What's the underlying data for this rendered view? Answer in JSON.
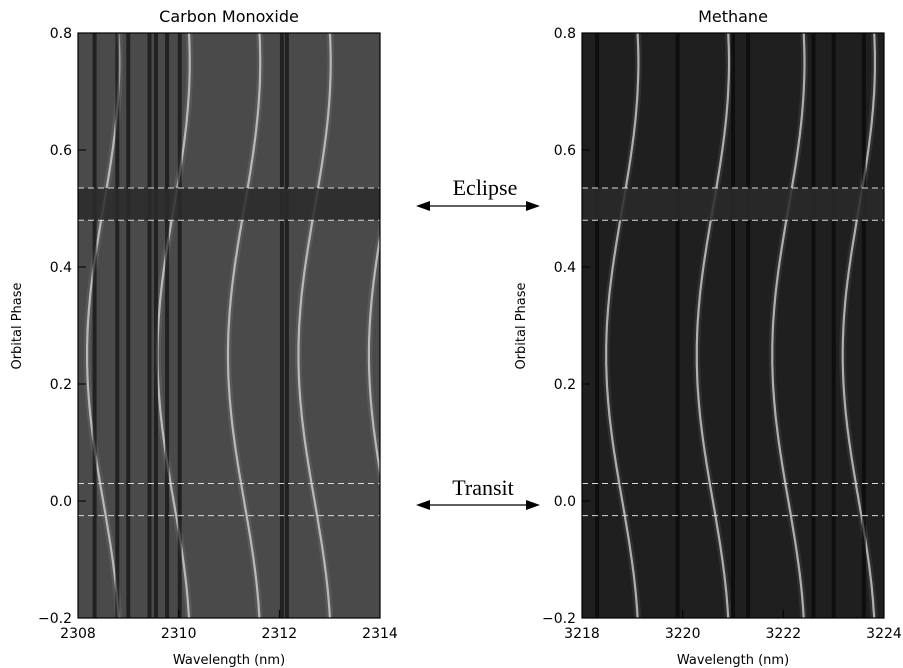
{
  "chart_data": [
    {
      "type": "heatmap",
      "title": "Carbon Monoxide",
      "xlabel": "Wavelength (nm)",
      "ylabel": "Orbital Phase",
      "xlim": [
        2308,
        2314
      ],
      "ylim": [
        -0.2,
        0.8
      ],
      "xticks": [
        "2308",
        "2310",
        "2312",
        "2314"
      ],
      "yticks": [
        "−0.2",
        "0.0",
        "0.2",
        "0.4",
        "0.6",
        "0.8"
      ],
      "background": "#4a4a4a",
      "colormap": "grayscale",
      "dark_lines_nm": [
        2308.33,
        2308.78,
        2309.0,
        2309.42,
        2309.55,
        2309.77,
        2310.02,
        2312.05,
        2312.15
      ],
      "trail_lines_nm": [
        2308.5,
        2309.9,
        2311.3,
        2312.7,
        2314.1
      ],
      "eclipse_band": [
        0.48,
        0.535
      ],
      "transit_band": [
        -0.025,
        0.03
      ]
    },
    {
      "type": "heatmap",
      "title": "Methane",
      "xlabel": "Wavelength (nm)",
      "ylabel": "Orbital Phase",
      "xlim": [
        3218,
        3224
      ],
      "ylim": [
        -0.2,
        0.8
      ],
      "xticks": [
        "3218",
        "3220",
        "3222",
        "3224"
      ],
      "yticks": [
        "−0.2",
        "0.0",
        "0.2",
        "0.4",
        "0.6",
        "0.8"
      ],
      "background": "#1f1f1f",
      "colormap": "grayscale",
      "dark_lines_nm": [
        3218.3,
        3219.9,
        3221.0,
        3221.3,
        3222.6,
        3223.0,
        3223.6
      ],
      "trail_lines_nm": [
        3218.8,
        3220.6,
        3222.1,
        3223.5
      ],
      "eclipse_band": [
        0.48,
        0.535
      ],
      "transit_band": [
        -0.025,
        0.03
      ]
    }
  ],
  "annotations": {
    "eclipse": "Eclipse",
    "transit": "Transit"
  }
}
